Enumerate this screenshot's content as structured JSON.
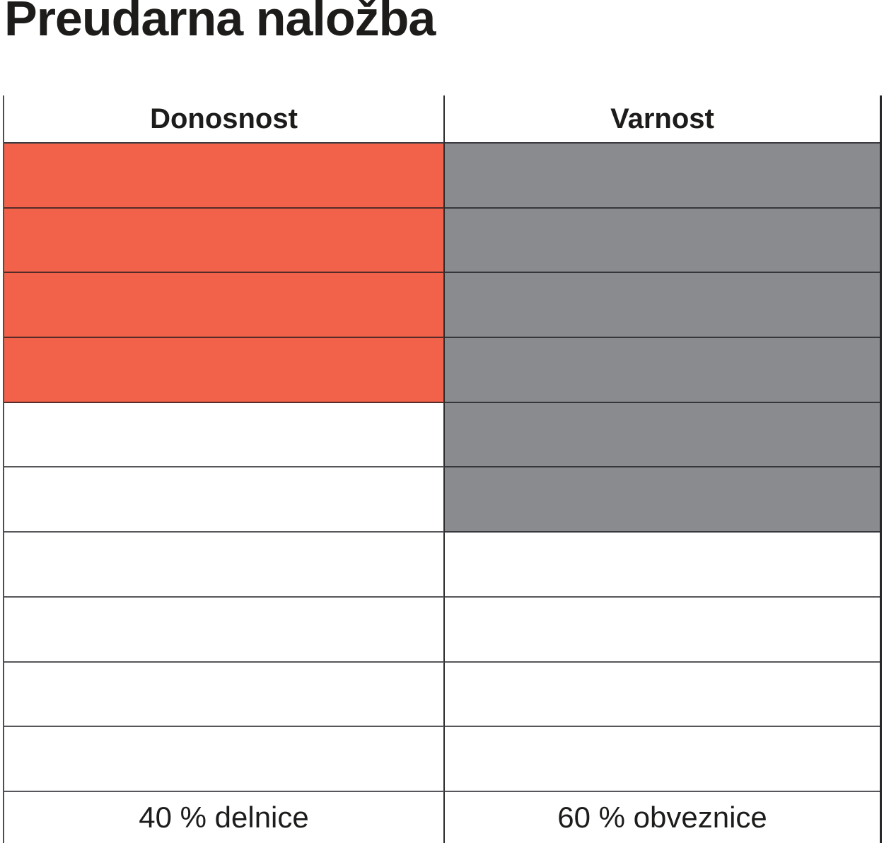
{
  "page": {
    "title": "Preudarna naložba",
    "background_color": "#ffffff",
    "text_color": "#1d1c1b"
  },
  "chart_data": {
    "type": "table",
    "title": "Preudarna naložba",
    "description_visible": "Two-column segment grid: 10 rows per column, filled segments from the top indicate the allocation share.",
    "segments_total": 10,
    "categories": [
      "Donosnost",
      "Varnost"
    ],
    "values_percent": [
      40,
      60
    ],
    "columns": [
      {
        "header": "Donosnost",
        "footer_label": "40 % delnice",
        "filled_segments": 4,
        "fill_color": "#F2624A"
      },
      {
        "header": "Varnost",
        "footer_label": "60 % obveznice",
        "filled_segments": 6,
        "fill_color": "#8A8B8F"
      }
    ],
    "grid_line_color": "#3b3b3f",
    "legend_position": "none"
  }
}
